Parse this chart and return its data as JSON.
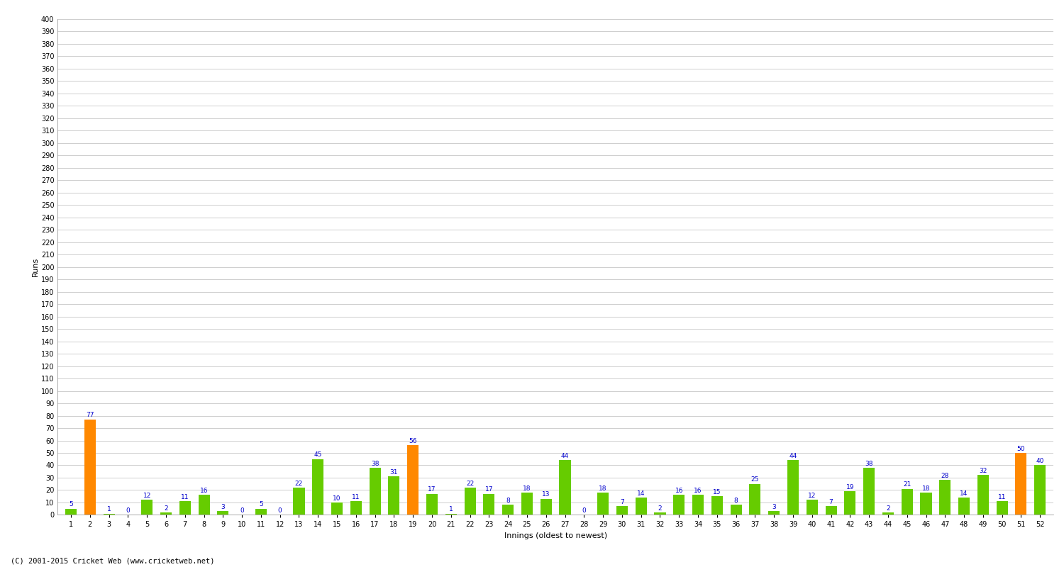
{
  "innings": [
    1,
    2,
    3,
    4,
    5,
    6,
    7,
    8,
    9,
    10,
    11,
    12,
    13,
    14,
    15,
    16,
    17,
    18,
    19,
    20,
    21,
    22,
    23,
    24,
    25,
    26,
    27,
    28,
    29,
    30,
    31,
    32,
    33,
    34,
    35,
    36,
    37,
    38,
    39,
    40,
    41,
    42,
    43,
    44,
    45,
    46,
    47,
    48,
    49,
    50,
    51,
    52
  ],
  "values": [
    5,
    77,
    1,
    0,
    12,
    2,
    11,
    16,
    3,
    0,
    5,
    0,
    22,
    45,
    10,
    11,
    38,
    31,
    56,
    17,
    1,
    22,
    17,
    8,
    18,
    13,
    44,
    0,
    18,
    7,
    14,
    2,
    16,
    16,
    15,
    8,
    25,
    3,
    44,
    12,
    7,
    19,
    38,
    2,
    21,
    18,
    28,
    14,
    32,
    11,
    50,
    40
  ],
  "labels": [
    "1",
    "2",
    "3",
    "4",
    "5",
    "6",
    "7",
    "8",
    "9",
    "10",
    "11",
    "12",
    "13",
    "14",
    "15",
    "16",
    "17",
    "18",
    "19",
    "20",
    "21",
    "22",
    "23",
    "24",
    "25",
    "26",
    "27",
    "28",
    "29",
    "30",
    "31",
    "32",
    "33",
    "34",
    "35",
    "36",
    "37",
    "38",
    "39",
    "40",
    "41",
    "42",
    "43",
    "44",
    "45",
    "46",
    "47",
    "48",
    "49",
    "50",
    "51",
    "52"
  ],
  "orange_innings_indices": [
    1,
    18,
    50
  ],
  "bar_color_green": "#66cc00",
  "bar_color_orange": "#ff8800",
  "ylabel": "Runs",
  "xlabel": "Innings (oldest to newest)",
  "footer": "(C) 2001-2015 Cricket Web (www.cricketweb.net)",
  "ylim": [
    0,
    400
  ],
  "background_color": "#ffffff",
  "grid_color": "#bbbbbb",
  "label_color": "#0000cc",
  "label_fontsize": 6.5,
  "tick_label_fontsize": 7,
  "ylabel_fontsize": 8,
  "xlabel_fontsize": 8,
  "bar_width": 0.6
}
